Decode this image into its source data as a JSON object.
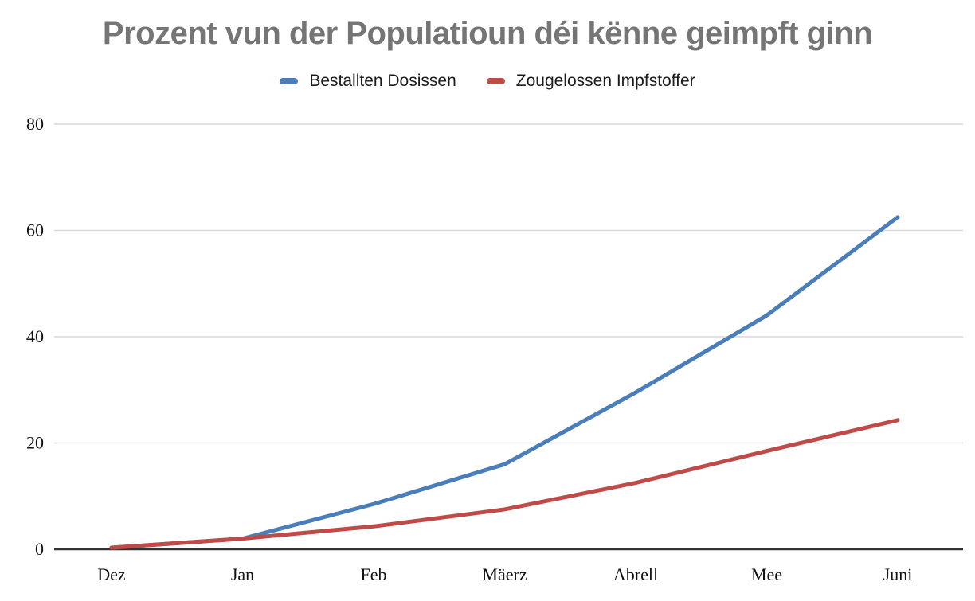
{
  "colors": {
    "title": "#757575",
    "grid": "#D9D9D9",
    "axis": "#333333",
    "blue_series": "#4A7EBB",
    "red_series": "#BE4B48"
  },
  "chart_data": {
    "type": "line",
    "title": "Prozent vun der Populatioun déi kënne geimpft ginn",
    "categories": [
      "Dez",
      "Jan",
      "Feb",
      "Mäerz",
      "Abrell",
      "Mee",
      "Juni"
    ],
    "series": [
      {
        "name": "Bestallten Dosissen",
        "color": "#4A7EBB",
        "values": [
          0.3,
          2,
          8.5,
          16,
          29.5,
          44,
          62.5
        ]
      },
      {
        "name": "Zougelossen Impfstoffer",
        "color": "#BE4B48",
        "values": [
          0.3,
          2,
          4.3,
          7.5,
          12.5,
          18.5,
          24.3
        ]
      }
    ],
    "xlabel": "",
    "ylabel": "",
    "y_ticks": [
      0,
      20,
      40,
      60,
      80
    ],
    "ylim": [
      0,
      80
    ],
    "grid": true,
    "legend_position": "top"
  }
}
